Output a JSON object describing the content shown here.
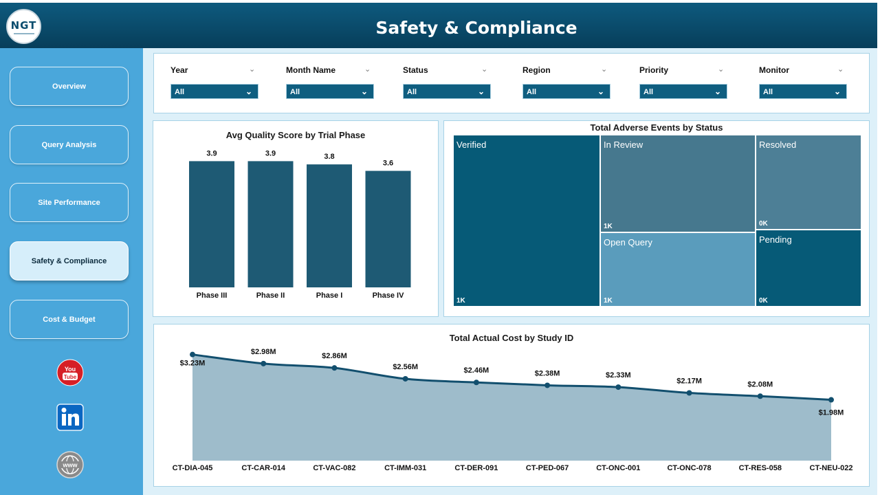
{
  "header": {
    "title": "Safety & Compliance",
    "logo_text": "NGT"
  },
  "sidebar": {
    "items": [
      {
        "label": "Overview"
      },
      {
        "label": "Query Analysis"
      },
      {
        "label": "Site Performance"
      },
      {
        "label": "Safety & Compliance",
        "active": true
      },
      {
        "label": "Cost & Budget"
      }
    ],
    "social": {
      "youtube_label": "You Tube",
      "linkedin_label": "in",
      "web_label": "www"
    }
  },
  "filters": [
    {
      "label": "Year",
      "value": "All"
    },
    {
      "label": "Month Name",
      "value": "All"
    },
    {
      "label": "Status",
      "value": "All"
    },
    {
      "label": "Region",
      "value": "All"
    },
    {
      "label": "Priority",
      "value": "All"
    },
    {
      "label": "Monitor",
      "value": "All"
    }
  ],
  "charts": {
    "quality": {
      "title": "Avg Quality Score by Trial Phase"
    },
    "adverse": {
      "title": "Total Adverse Events by Status"
    },
    "cost": {
      "title": "Total Actual Cost by Study ID"
    }
  },
  "chart_data": [
    {
      "type": "bar",
      "title": "Avg Quality Score by Trial Phase",
      "categories": [
        "Phase III",
        "Phase II",
        "Phase I",
        "Phase IV"
      ],
      "values": [
        3.9,
        3.9,
        3.8,
        3.6
      ],
      "labels": [
        "3.9",
        "3.9",
        "3.8",
        "3.6"
      ],
      "ylim": [
        0,
        4.1
      ],
      "color": "#1e5a74"
    },
    {
      "type": "treemap",
      "title": "Total Adverse Events by Status",
      "items": [
        {
          "name": "Verified",
          "label": "1K",
          "color": "#065a77"
        },
        {
          "name": "In Review",
          "label": "1K",
          "color": "#46788e"
        },
        {
          "name": "Open Query",
          "label": "1K",
          "color": "#5a9cbc"
        },
        {
          "name": "Resolved",
          "label": "0K",
          "color": "#4d7f96"
        },
        {
          "name": "Pending",
          "label": "0K",
          "color": "#065a77"
        }
      ]
    },
    {
      "type": "area",
      "title": "Total Actual Cost by Study ID",
      "categories": [
        "CT-DIA-045",
        "CT-CAR-014",
        "CT-VAC-082",
        "CT-IMM-031",
        "CT-DER-091",
        "CT-PED-067",
        "CT-ONC-001",
        "CT-ONC-078",
        "CT-RES-058",
        "CT-NEU-022"
      ],
      "values": [
        3.23,
        2.98,
        2.86,
        2.56,
        2.46,
        2.38,
        2.33,
        2.17,
        2.08,
        1.98
      ],
      "labels": [
        "$3.23M",
        "$2.98M",
        "$2.86M",
        "$2.56M",
        "$2.46M",
        "$2.38M",
        "$2.33M",
        "$2.17M",
        "$2.08M",
        "$1.98M"
      ],
      "ylim": [
        0,
        3.3
      ],
      "line_color": "#124f6e",
      "fill_color": "#9ebccb"
    }
  ]
}
